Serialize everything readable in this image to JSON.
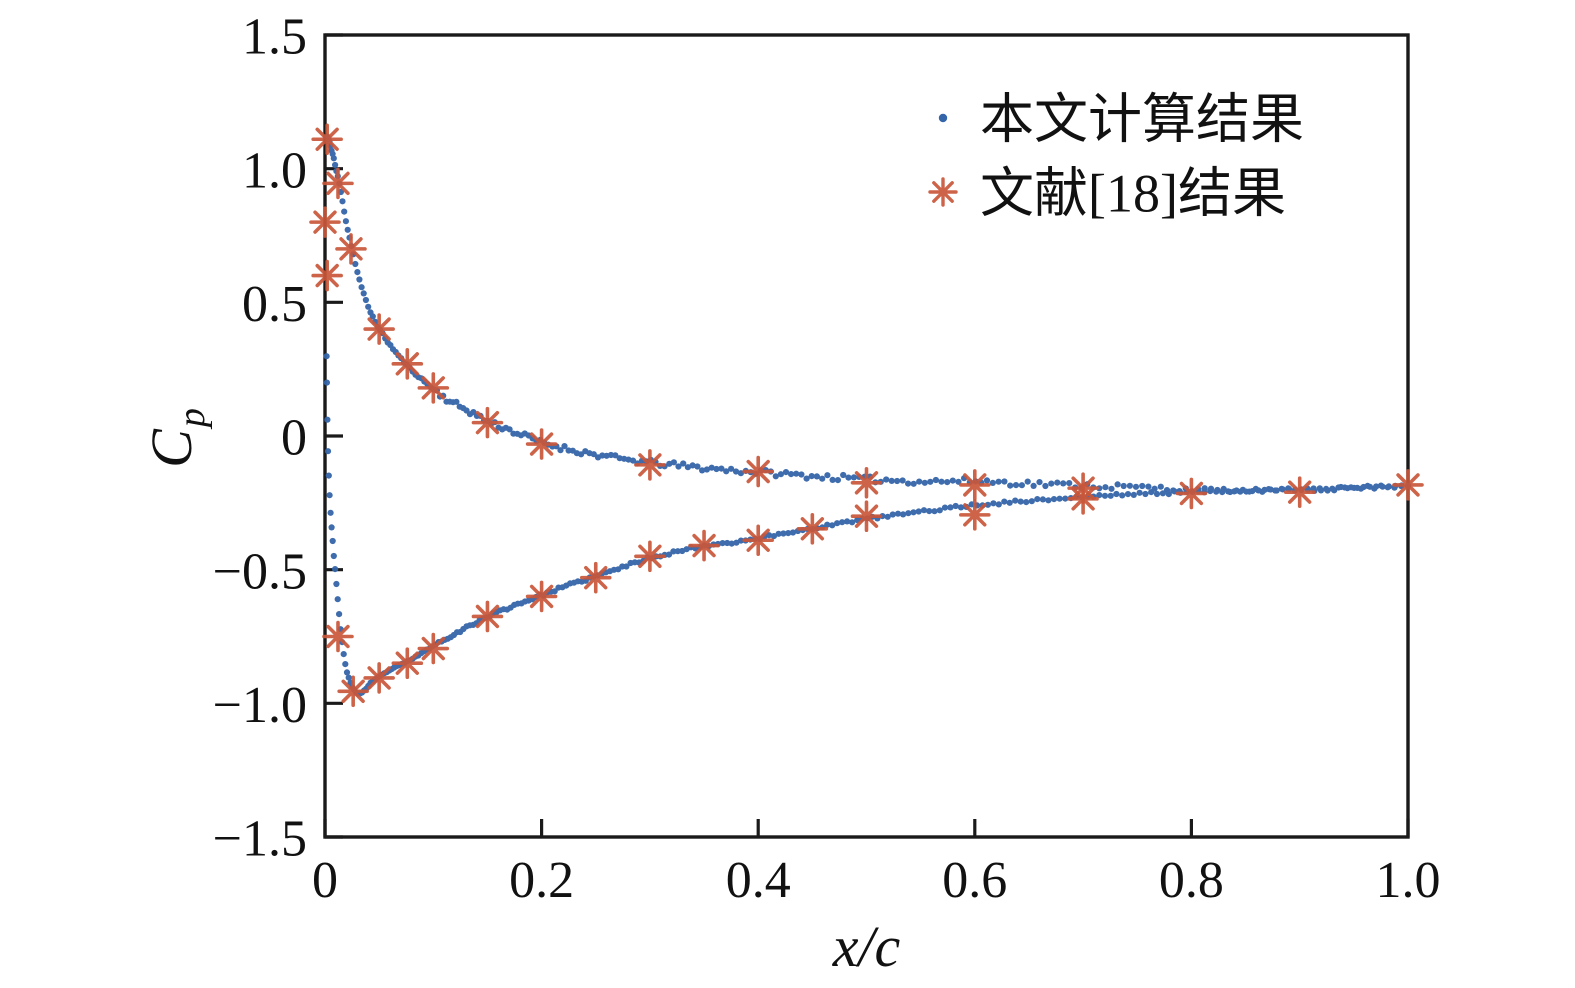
{
  "figure": {
    "background": "#ffffff",
    "axis_color": "#1a1a1a",
    "text_color": "#111111"
  },
  "chart_data": {
    "type": "scatter",
    "title": "",
    "xlabel": "x/c",
    "ylabel": "Cp",
    "ylabel_parts": {
      "main": "C",
      "sub": "p"
    },
    "xlim": [
      0,
      1.0
    ],
    "ylim": [
      -1.5,
      1.5
    ],
    "grid": false,
    "x_ticks": [
      {
        "v": 0.0,
        "label": "0"
      },
      {
        "v": 0.2,
        "label": "0.2"
      },
      {
        "v": 0.4,
        "label": "0.4"
      },
      {
        "v": 0.6,
        "label": "0.6"
      },
      {
        "v": 0.8,
        "label": "0.8"
      },
      {
        "v": 1.0,
        "label": "1.0"
      }
    ],
    "y_ticks": [
      {
        "v": 1.5,
        "label": "1.5"
      },
      {
        "v": 1.0,
        "label": "1.0"
      },
      {
        "v": 0.5,
        "label": "0.5"
      },
      {
        "v": 0.0,
        "label": "0"
      },
      {
        "v": -0.5,
        "label": "−0.5"
      },
      {
        "v": -1.0,
        "label": "−1.0"
      },
      {
        "v": -1.5,
        "label": "−1.5"
      }
    ],
    "legend": {
      "position": "upper-right",
      "frame": false,
      "items": [
        {
          "label": "本文计算结果",
          "marker": "dot",
          "color": "#3465A8"
        },
        {
          "label": "文献[18]结果",
          "marker": "asterisk-8",
          "color": "#C9573A"
        }
      ]
    },
    "series": [
      {
        "name": "本文计算结果",
        "kind": "dense-scatter",
        "marker": "dot",
        "color": "#3465A8",
        "marker_radius_px": 3.1,
        "branches": [
          {
            "name": "pressure-side-upper-branch",
            "n_points": 240,
            "jitter": 0.011,
            "exp": 1.5,
            "seed": 11,
            "anchors": [
              [
                0.002,
                1.12
              ],
              [
                0.004,
                1.1
              ],
              [
                0.006,
                1.07
              ],
              [
                0.008,
                1.04
              ],
              [
                0.01,
                1.0
              ],
              [
                0.013,
                0.95
              ],
              [
                0.016,
                0.88
              ],
              [
                0.02,
                0.79
              ],
              [
                0.025,
                0.7
              ],
              [
                0.03,
                0.61
              ],
              [
                0.035,
                0.54
              ],
              [
                0.04,
                0.48
              ],
              [
                0.05,
                0.4
              ],
              [
                0.06,
                0.34
              ],
              [
                0.07,
                0.29
              ],
              [
                0.08,
                0.245
              ],
              [
                0.09,
                0.21
              ],
              [
                0.1,
                0.175
              ],
              [
                0.115,
                0.13
              ],
              [
                0.13,
                0.1
              ],
              [
                0.15,
                0.055
              ],
              [
                0.175,
                0.015
              ],
              [
                0.2,
                -0.025
              ],
              [
                0.225,
                -0.05
              ],
              [
                0.25,
                -0.07
              ],
              [
                0.275,
                -0.087
              ],
              [
                0.3,
                -0.1
              ],
              [
                0.35,
                -0.12
              ],
              [
                0.4,
                -0.135
              ],
              [
                0.45,
                -0.15
              ],
              [
                0.5,
                -0.162
              ],
              [
                0.55,
                -0.17
              ],
              [
                0.6,
                -0.168
              ],
              [
                0.65,
                -0.178
              ],
              [
                0.7,
                -0.185
              ],
              [
                0.75,
                -0.192
              ],
              [
                0.8,
                -0.2
              ],
              [
                0.85,
                -0.205
              ],
              [
                0.9,
                -0.202
              ],
              [
                0.95,
                -0.195
              ],
              [
                1.0,
                -0.185
              ]
            ]
          },
          {
            "name": "suction-side-lower-branch",
            "n_points": 255,
            "jitter": 0.005,
            "exp": 1.5,
            "seed": 23,
            "anchors": [
              [
                0.0015,
                0.3
              ],
              [
                0.002,
                0.1
              ],
              [
                0.0025,
                0.0
              ],
              [
                0.003,
                -0.1
              ],
              [
                0.004,
                -0.2
              ],
              [
                0.005,
                -0.28
              ],
              [
                0.006,
                -0.34
              ],
              [
                0.007,
                -0.39
              ],
              [
                0.008,
                -0.44
              ],
              [
                0.01,
                -0.53
              ],
              [
                0.012,
                -0.62
              ],
              [
                0.014,
                -0.71
              ],
              [
                0.017,
                -0.81
              ],
              [
                0.02,
                -0.88
              ],
              [
                0.024,
                -0.93
              ],
              [
                0.028,
                -0.958
              ],
              [
                0.032,
                -0.965
              ],
              [
                0.037,
                -0.95
              ],
              [
                0.042,
                -0.925
              ],
              [
                0.05,
                -0.9
              ],
              [
                0.06,
                -0.875
              ],
              [
                0.07,
                -0.855
              ],
              [
                0.08,
                -0.835
              ],
              [
                0.09,
                -0.81
              ],
              [
                0.1,
                -0.785
              ],
              [
                0.115,
                -0.75
              ],
              [
                0.13,
                -0.718
              ],
              [
                0.15,
                -0.675
              ],
              [
                0.175,
                -0.633
              ],
              [
                0.2,
                -0.595
              ],
              [
                0.225,
                -0.558
              ],
              [
                0.25,
                -0.525
              ],
              [
                0.275,
                -0.49
              ],
              [
                0.3,
                -0.455
              ],
              [
                0.325,
                -0.432
              ],
              [
                0.35,
                -0.41
              ],
              [
                0.375,
                -0.398
              ],
              [
                0.4,
                -0.383
              ],
              [
                0.425,
                -0.364
              ],
              [
                0.45,
                -0.345
              ],
              [
                0.475,
                -0.327
              ],
              [
                0.5,
                -0.31
              ],
              [
                0.525,
                -0.296
              ],
              [
                0.55,
                -0.283
              ],
              [
                0.575,
                -0.27
              ],
              [
                0.6,
                -0.258
              ],
              [
                0.65,
                -0.242
              ],
              [
                0.7,
                -0.228
              ],
              [
                0.75,
                -0.216
              ],
              [
                0.8,
                -0.21
              ],
              [
                0.85,
                -0.205
              ],
              [
                0.9,
                -0.2
              ],
              [
                0.95,
                -0.192
              ],
              [
                1.0,
                -0.185
              ]
            ]
          }
        ]
      },
      {
        "name": "文献[18]结果",
        "kind": "scatter",
        "marker": "asterisk-8",
        "color": "#C9573A",
        "marker_radius_px": 14,
        "stroke_width_px": 3.6,
        "points": [
          [
            0.002,
            1.11
          ],
          [
            0.0,
            0.8
          ],
          [
            0.002,
            0.6
          ],
          [
            0.012,
            0.945
          ],
          [
            0.024,
            0.7
          ],
          [
            0.05,
            0.4
          ],
          [
            0.076,
            0.27
          ],
          [
            0.1,
            0.18
          ],
          [
            0.15,
            0.05
          ],
          [
            0.2,
            -0.03
          ],
          [
            0.3,
            -0.108
          ],
          [
            0.4,
            -0.133
          ],
          [
            0.5,
            -0.175
          ],
          [
            0.6,
            -0.183
          ],
          [
            0.7,
            -0.195
          ],
          [
            0.012,
            -0.75
          ],
          [
            0.026,
            -0.955
          ],
          [
            0.05,
            -0.905
          ],
          [
            0.076,
            -0.85
          ],
          [
            0.1,
            -0.795
          ],
          [
            0.15,
            -0.675
          ],
          [
            0.2,
            -0.6
          ],
          [
            0.25,
            -0.53
          ],
          [
            0.3,
            -0.45
          ],
          [
            0.35,
            -0.41
          ],
          [
            0.4,
            -0.39
          ],
          [
            0.45,
            -0.347
          ],
          [
            0.5,
            -0.3
          ],
          [
            0.6,
            -0.295
          ],
          [
            0.7,
            -0.235
          ],
          [
            0.8,
            -0.215
          ],
          [
            0.9,
            -0.21
          ],
          [
            1.0,
            -0.183
          ]
        ]
      }
    ]
  }
}
